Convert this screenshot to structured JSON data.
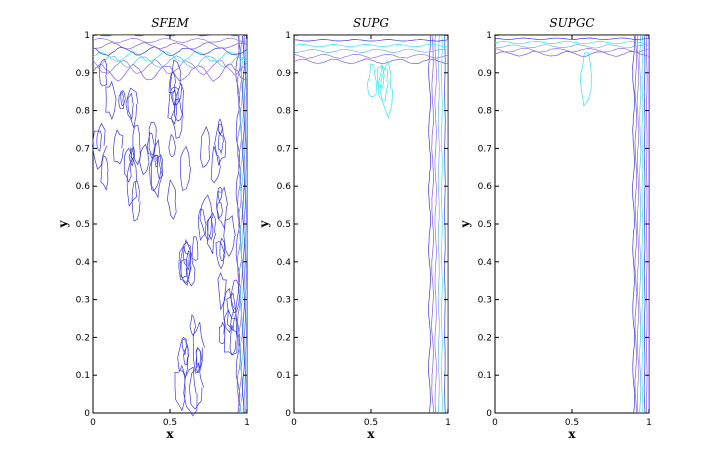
{
  "chart_data": [
    {
      "type": "contour",
      "title": "SFEM",
      "xlabel": "x",
      "ylabel": "y",
      "xlim": [
        0,
        1
      ],
      "ylim": [
        0,
        1
      ],
      "x_ticks": [
        "0",
        "0.5",
        "1"
      ],
      "y_ticks": [
        "0",
        "0.1",
        "0.2",
        "0.3",
        "0.4",
        "0.5",
        "0.6",
        "0.7",
        "0.8",
        "0.9",
        "1"
      ],
      "colors": [
        "#3a3ae6",
        "#7a5ce0",
        "#9a6de6",
        "#5fb8ee",
        "#30e8ee"
      ],
      "features": {
        "right_boundary_layer": {
          "x_start": 0.94,
          "x_end": 1.0,
          "levels": 9
        },
        "top_boundary_layer": {
          "y_start": 0.9,
          "y_end": 1.0,
          "levels": 8
        },
        "oscillations": "spurious wiggles spreading into the interior"
      }
    },
    {
      "type": "contour",
      "title": "SUPG",
      "xlabel": "x",
      "ylabel": "y",
      "xlim": [
        0,
        1
      ],
      "ylim": [
        0,
        1
      ],
      "x_ticks": [
        "0",
        "0.5",
        "1"
      ],
      "y_ticks": [
        "0",
        "0.1",
        "0.2",
        "0.3",
        "0.4",
        "0.5",
        "0.6",
        "0.7",
        "0.8",
        "0.9",
        "1"
      ],
      "colors": [
        "#3a3ae6",
        "#7a5ce0",
        "#9a6de6",
        "#5fb8ee",
        "#30e8ee"
      ],
      "features": {
        "right_boundary_layer": {
          "x_start": 0.88,
          "x_end": 1.0,
          "levels": 7
        },
        "top_boundary_layer": {
          "y_start": 0.93,
          "y_end": 1.0,
          "levels": 6
        },
        "oscillations": "mild"
      }
    },
    {
      "type": "contour",
      "title": "SUPGC",
      "xlabel": "x",
      "ylabel": "y",
      "xlim": [
        0,
        1
      ],
      "ylim": [
        0,
        1
      ],
      "x_ticks": [
        "0",
        "0.5",
        "1"
      ],
      "y_ticks": [
        "0",
        "0.1",
        "0.2",
        "0.3",
        "0.4",
        "0.5",
        "0.6",
        "0.7",
        "0.8",
        "0.9",
        "1"
      ],
      "colors": [
        "#3a3ae6",
        "#7a5ce0",
        "#9a6de6",
        "#5fb8ee",
        "#30e8ee"
      ],
      "features": {
        "right_boundary_layer": {
          "x_start": 0.9,
          "x_end": 1.0,
          "levels": 8
        },
        "top_boundary_layer": {
          "y_start": 0.95,
          "y_end": 1.0,
          "levels": 6
        },
        "oscillations": "minimal"
      }
    }
  ]
}
